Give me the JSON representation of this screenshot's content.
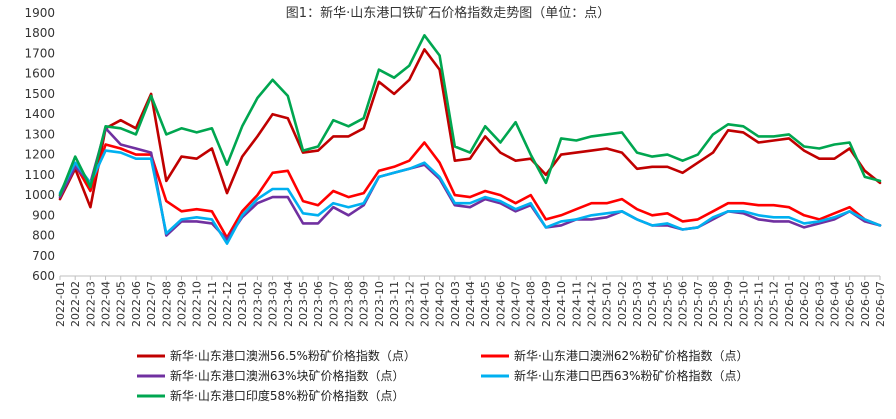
{
  "chart_data": {
    "type": "line",
    "title": "图1：新华·山东港口铁矿石价格指数走势图（单位：点）",
    "xlabel": "",
    "ylabel": "",
    "ylim": [
      600,
      1900
    ],
    "yticks": [
      600,
      700,
      800,
      900,
      1000,
      1100,
      1200,
      1300,
      1400,
      1500,
      1600,
      1700,
      1800,
      1900
    ],
    "grid": false,
    "legend_position": "bottom",
    "x": [
      "2022-01",
      "2022-02",
      "2022-03",
      "2022-04",
      "2022-05",
      "2022-06",
      "2022-07",
      "2022-08",
      "2022-09",
      "2022-10",
      "2022-11",
      "2022-12",
      "2023-01",
      "2023-02",
      "2023-03",
      "2023-04",
      "2023-05",
      "2023-06",
      "2023-07",
      "2023-08",
      "2023-09",
      "2023-10",
      "2023-11",
      "2023-12",
      "2024-01",
      "2024-02",
      "2024-03",
      "2024-04",
      "2024-05",
      "2024-06",
      "2024-07",
      "2024-08",
      "2024-09",
      "2024-10",
      "2024-11",
      "2024-12",
      "2025-01",
      "2025-02",
      "2025-03",
      "2025-04",
      "2025-05",
      "2025-06",
      "2025-07",
      "2025-08",
      "2025-09",
      "2025-10",
      "2025-11",
      "2025-12",
      "2026-01",
      "2026-02",
      "2026-03",
      "2026-04",
      "2026-05",
      "2026-06",
      "2026-07"
    ],
    "series": [
      {
        "name": "新华·山东港口澳洲56.5%粉矿价格指数（点）",
        "color": "#c00000",
        "values": [
          980,
          1130,
          940,
          1330,
          1370,
          1330,
          1500,
          1070,
          1190,
          1180,
          1230,
          1010,
          1190,
          1290,
          1400,
          1380,
          1210,
          1220,
          1290,
          1290,
          1330,
          1560,
          1500,
          1570,
          1720,
          1620,
          1170,
          1180,
          1290,
          1210,
          1170,
          1180,
          1100,
          1200,
          1210,
          1220,
          1230,
          1210,
          1130,
          1140,
          1140,
          1110,
          1160,
          1210,
          1320,
          1310,
          1260,
          1270,
          1280,
          1220,
          1180,
          1180,
          1230,
          1120,
          1060
        ]
      },
      {
        "name": "新华·山东港口澳洲62%粉矿价格指数（点）",
        "color": "#ff0000",
        "values": [
          1000,
          1150,
          1020,
          1250,
          1230,
          1200,
          1200,
          970,
          920,
          930,
          920,
          790,
          920,
          1000,
          1110,
          1120,
          970,
          950,
          1020,
          990,
          1010,
          1120,
          1140,
          1170,
          1260,
          1160,
          1000,
          990,
          1020,
          1000,
          960,
          1000,
          880,
          900,
          930,
          960,
          960,
          980,
          930,
          900,
          910,
          870,
          880,
          920,
          960,
          960,
          950,
          950,
          940,
          900,
          880,
          910,
          940,
          880,
          850
        ]
      },
      {
        "name": "新华·山东港口澳洲63%块矿价格指数（点）",
        "color": "#7030a0",
        "values": [
          990,
          1140,
          1060,
          1330,
          1250,
          1230,
          1210,
          800,
          870,
          870,
          860,
          780,
          890,
          960,
          990,
          990,
          860,
          860,
          940,
          900,
          950,
          1090,
          1110,
          1130,
          1150,
          1080,
          950,
          940,
          980,
          960,
          920,
          950,
          840,
          850,
          880,
          880,
          890,
          920,
          880,
          850,
          850,
          830,
          840,
          880,
          920,
          910,
          880,
          870,
          870,
          840,
          860,
          880,
          920,
          870,
          850
        ]
      },
      {
        "name": "新华·山东港口巴西63%粉矿价格指数（点）",
        "color": "#00b0f0",
        "values": [
          1010,
          1160,
          1060,
          1220,
          1210,
          1180,
          1180,
          810,
          880,
          890,
          880,
          760,
          900,
          980,
          1030,
          1030,
          910,
          900,
          960,
          940,
          960,
          1090,
          1110,
          1130,
          1160,
          1090,
          960,
          960,
          990,
          970,
          930,
          960,
          840,
          870,
          880,
          900,
          910,
          920,
          880,
          850,
          860,
          830,
          840,
          890,
          920,
          920,
          900,
          890,
          890,
          860,
          870,
          890,
          920,
          880,
          850
        ]
      },
      {
        "name": "新华·山东港口印度58%粉矿价格指数（点）",
        "color": "#00a650",
        "values": [
          1000,
          1190,
          1040,
          1340,
          1330,
          1300,
          1490,
          1300,
          1330,
          1310,
          1330,
          1150,
          1340,
          1480,
          1570,
          1490,
          1220,
          1240,
          1370,
          1340,
          1380,
          1620,
          1580,
          1640,
          1790,
          1690,
          1240,
          1210,
          1340,
          1260,
          1360,
          1200,
          1060,
          1280,
          1270,
          1290,
          1300,
          1310,
          1210,
          1190,
          1200,
          1170,
          1200,
          1300,
          1350,
          1340,
          1290,
          1290,
          1300,
          1240,
          1230,
          1250,
          1260,
          1090,
          1070
        ]
      }
    ]
  }
}
